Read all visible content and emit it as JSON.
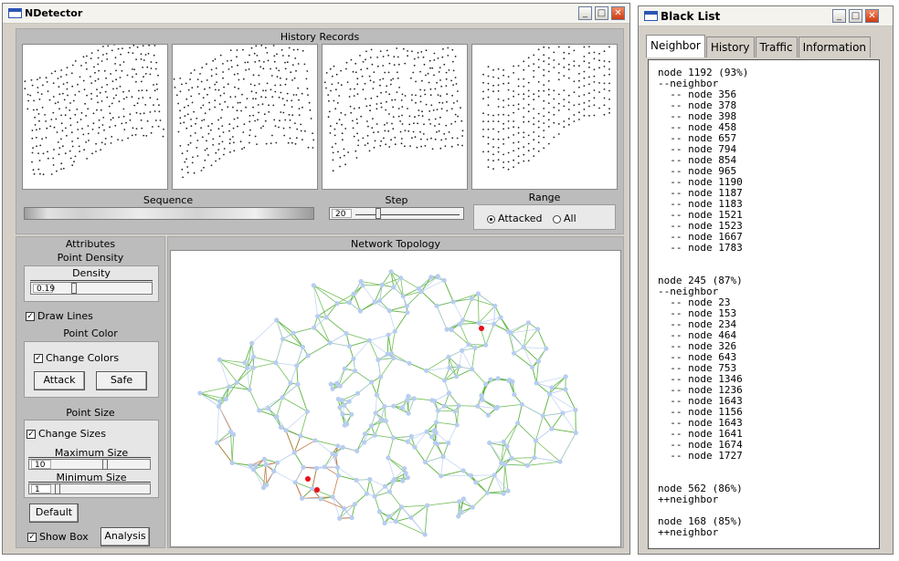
{
  "main_window": {
    "title": "NDetector",
    "controls": {
      "minimize": "_",
      "maximize": "□",
      "close": "✕"
    },
    "history": {
      "label": "History Records",
      "sequence_label": "Sequence",
      "step_label": "Step",
      "step_value": "20",
      "range_label": "Range",
      "range_options": [
        "Attacked",
        "All"
      ],
      "range_selected": "Attacked"
    },
    "attributes": {
      "label": "Attributes",
      "point_density_label": "Point Density",
      "density_label": "Density",
      "density_value": "0.19",
      "draw_lines_label": "Draw Lines",
      "draw_lines_checked": true,
      "point_color_label": "Point Color",
      "change_colors_label": "Change Colors",
      "change_colors_checked": true,
      "attack_button": "Attack",
      "safe_button": "Safe",
      "point_size_label": "Point Size",
      "change_sizes_label": "Change Sizes",
      "change_sizes_checked": true,
      "maximum_size_label": "Maximum Size",
      "maximum_size_value": "10",
      "minimum_size_label": "Minimum Size",
      "minimum_size_value": "1",
      "default_button": "Default",
      "show_box_label": "Show Box",
      "show_box_checked": true,
      "analysis_button": "Analysis"
    },
    "network": {
      "label": "Network Topology",
      "colors": {
        "node": "#b8cdf0",
        "edge_safe": "#5ab43c",
        "edge_attacked": "#b8662a",
        "hot": "#e8101a"
      }
    }
  },
  "blacklist_window": {
    "title": "Black List",
    "tabs": [
      "Neighbor",
      "History",
      "Traffic",
      "Information"
    ],
    "active_tab": "Neighbor",
    "entries": [
      {
        "header": "node 1192 (93%)",
        "toggle": "--neighbor",
        "neighbors": [
          "-- node 356",
          "-- node 378",
          "-- node 398",
          "-- node 458",
          "-- node 657",
          "-- node 794",
          "-- node 854",
          "-- node 965",
          "-- node 1190",
          "-- node 1187",
          "-- node 1183",
          "-- node 1521",
          "-- node 1523",
          "-- node 1667",
          "-- node 1783"
        ]
      },
      {
        "header": "node 245 (87%)",
        "toggle": "--neighbor",
        "neighbors": [
          "-- node 23",
          "-- node 153",
          "-- node 234",
          "-- node 464",
          "-- node 326",
          "-- node 643",
          "-- node 753",
          "-- node 1346",
          "-- node 1236",
          "-- node 1643",
          "-- node 1156",
          "-- node 1643",
          "-- node 1641",
          "-- node 1674",
          "-- node 1727"
        ]
      },
      {
        "header": "node 562 (86%)",
        "toggle": "++neighbor",
        "neighbors": []
      },
      {
        "header": "node 168 (85%)",
        "toggle": "++neighbor",
        "neighbors": []
      }
    ]
  }
}
